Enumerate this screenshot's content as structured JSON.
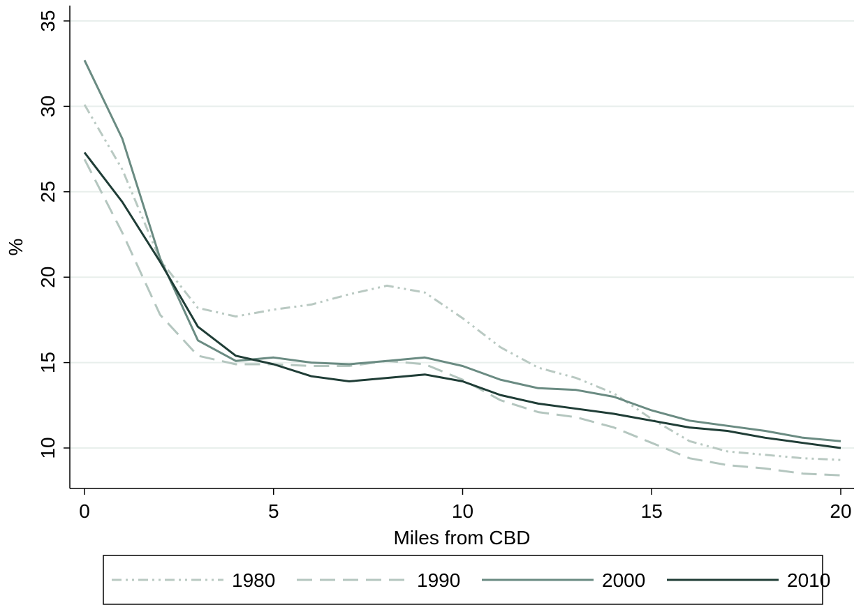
{
  "chart_data": {
    "type": "line",
    "title": "",
    "xlabel": "Miles from CBD",
    "ylabel": "%",
    "xlim": [
      0,
      20
    ],
    "ylim": [
      8,
      36
    ],
    "xticks": [
      "0",
      "5",
      "10",
      "15",
      "20"
    ],
    "yticks": [
      "10",
      "15",
      "20",
      "25",
      "30",
      "35"
    ],
    "grid": "horizontal",
    "legend_position": "bottom",
    "x": [
      0,
      1,
      2,
      3,
      4,
      5,
      6,
      7,
      8,
      9,
      10,
      11,
      12,
      13,
      14,
      15,
      16,
      17,
      18,
      19,
      20
    ],
    "series": [
      {
        "name": "1980",
        "color": "#b9c9c2",
        "dash": "dash-dot-dot",
        "values": [
          30.1,
          26.3,
          21.0,
          18.2,
          17.7,
          18.1,
          18.4,
          19.0,
          19.5,
          19.1,
          17.6,
          15.9,
          14.7,
          14.1,
          13.2,
          11.7,
          10.4,
          9.8,
          9.6,
          9.4,
          9.3
        ]
      },
      {
        "name": "1990",
        "color": "#b4c6bf",
        "dash": "long-dash",
        "values": [
          26.9,
          22.6,
          17.8,
          15.4,
          14.9,
          14.9,
          14.8,
          14.8,
          15.1,
          14.9,
          14.0,
          12.8,
          12.1,
          11.8,
          11.2,
          10.3,
          9.4,
          9.0,
          8.8,
          8.5,
          8.4
        ]
      },
      {
        "name": "2000",
        "color": "#6a8b82",
        "dash": "solid",
        "values": [
          32.7,
          28.1,
          21.1,
          16.3,
          15.1,
          15.3,
          15.0,
          14.9,
          15.1,
          15.3,
          14.8,
          14.0,
          13.5,
          13.4,
          13.0,
          12.2,
          11.6,
          11.3,
          11.0,
          10.6,
          10.4
        ]
      },
      {
        "name": "2010",
        "color": "#1f3d36",
        "dash": "solid",
        "values": [
          27.3,
          24.4,
          20.9,
          17.1,
          15.4,
          14.9,
          14.2,
          13.9,
          14.1,
          14.3,
          13.9,
          13.1,
          12.6,
          12.3,
          12.0,
          11.6,
          11.2,
          11.0,
          10.6,
          10.3,
          10.0
        ]
      }
    ]
  }
}
